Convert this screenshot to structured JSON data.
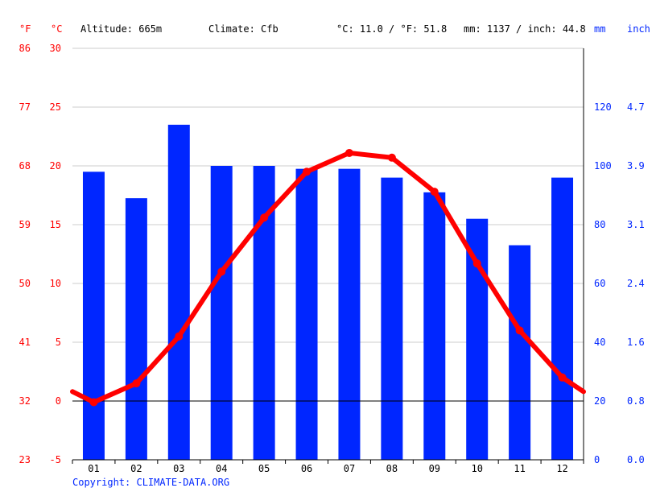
{
  "header": {
    "unit_f": "°F",
    "unit_c": "°C",
    "altitude": "Altitude: 665m",
    "climate": "Climate: Cfb",
    "temp_avg": "°C: 11.0 / °F: 51.8",
    "precip_avg": "mm: 1137 / inch: 44.8",
    "unit_mm": "mm",
    "unit_inch": "inch"
  },
  "copyright": "Copyright: CLIMATE-DATA.ORG",
  "colors": {
    "temperature": "#ff0000",
    "precipitation": "#0026ff",
    "axis": "#000000",
    "grid": "#cccccc"
  },
  "chart_data": {
    "type": "bar",
    "categories": [
      "01",
      "02",
      "03",
      "04",
      "05",
      "06",
      "07",
      "08",
      "09",
      "10",
      "11",
      "12"
    ],
    "series": [
      {
        "type": "bar",
        "axis": "right",
        "unit": "mm",
        "values": [
          98,
          89,
          114,
          100,
          100,
          99,
          99,
          96,
          91,
          82,
          73,
          96
        ]
      },
      {
        "type": "line",
        "axis": "left",
        "unit": "°C",
        "values": [
          -0.1,
          1.5,
          5.5,
          11.0,
          15.6,
          19.5,
          21.1,
          20.7,
          17.8,
          11.7,
          6.0,
          2.0
        ],
        "edge_values": [
          0.8,
          0.8
        ]
      }
    ],
    "left_axis_c": {
      "ylim": [
        -5,
        30
      ],
      "ticks": [
        "-5",
        "0",
        "5",
        "10",
        "15",
        "20",
        "25",
        "30"
      ]
    },
    "left_axis_f": {
      "ticks": [
        "23",
        "32",
        "41",
        "50",
        "59",
        "68",
        "77",
        "86"
      ]
    },
    "right_axis_mm": {
      "ylim": [
        0,
        140
      ],
      "ticks": [
        "0",
        "20",
        "40",
        "60",
        "80",
        "100",
        "120"
      ]
    },
    "right_axis_inch": {
      "ticks": [
        "0.0",
        "0.8",
        "1.6",
        "2.4",
        "3.1",
        "3.9",
        "4.7"
      ]
    },
    "grid": true
  }
}
